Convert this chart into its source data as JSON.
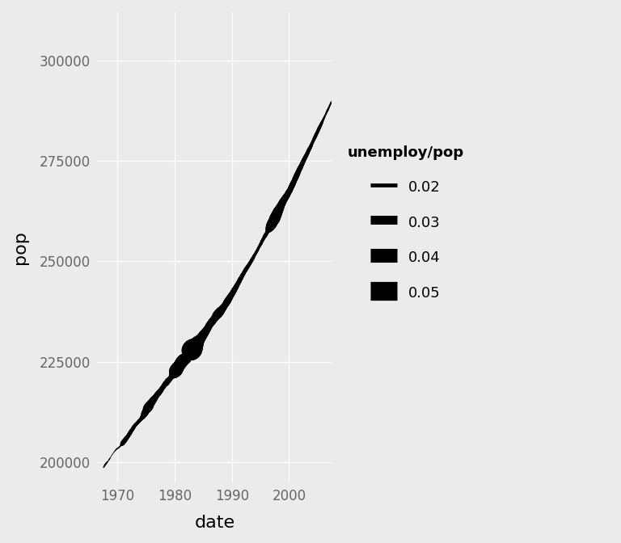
{
  "title": "",
  "xlabel": "date",
  "ylabel": "pop",
  "bg_color": "#EBEBEB",
  "panel_bg": "#EBEBEB",
  "grid_color": "#FFFFFF",
  "line_color": "#000000",
  "xlim": [
    1966.5,
    2007.5
  ],
  "ylim": [
    195000,
    312000
  ],
  "xticks": [
    1970,
    1980,
    1990,
    2000
  ],
  "yticks": [
    200000,
    225000,
    250000,
    275000,
    300000
  ],
  "legend_title": "unemploy/pop",
  "legend_values": [
    0.02,
    0.03,
    0.04,
    0.05
  ],
  "axis_label_fontsize": 16,
  "tick_label_fontsize": 12,
  "legend_fontsize": 13,
  "dates": [
    1967.583,
    1967.667,
    1967.75,
    1967.833,
    1967.917,
    1968.0,
    1968.083,
    1968.167,
    1968.25,
    1968.333,
    1968.417,
    1968.5,
    1968.583,
    1968.667,
    1968.75,
    1968.833,
    1968.917,
    1969.0,
    1969.083,
    1969.167,
    1969.25,
    1969.333,
    1969.417,
    1969.5,
    1969.583,
    1969.667,
    1969.75,
    1969.833,
    1969.917,
    1970.0,
    1970.083,
    1970.167,
    1970.25,
    1970.333,
    1970.417,
    1970.5,
    1970.583,
    1970.667,
    1970.75,
    1970.833,
    1970.917,
    1971.0,
    1971.083,
    1971.167,
    1971.25,
    1971.333,
    1971.417,
    1971.5,
    1971.583,
    1971.667,
    1971.75,
    1971.833,
    1971.917,
    1972.0,
    1972.083,
    1972.167,
    1972.25,
    1972.333,
    1972.417,
    1972.5,
    1972.583,
    1972.667,
    1972.75,
    1972.833,
    1972.917,
    1973.0,
    1973.083,
    1973.167,
    1973.25,
    1973.333,
    1973.417,
    1973.5,
    1973.583,
    1973.667,
    1973.75,
    1973.833,
    1973.917,
    1974.0,
    1974.083,
    1974.167,
    1974.25,
    1974.333,
    1974.417,
    1974.5,
    1974.583,
    1974.667,
    1974.75,
    1974.833,
    1974.917,
    1975.0,
    1975.083,
    1975.167,
    1975.25,
    1975.333,
    1975.417,
    1975.5,
    1975.583,
    1975.667,
    1975.75,
    1975.833,
    1975.917,
    1976.0,
    1976.083,
    1976.167,
    1976.25,
    1976.333,
    1976.417,
    1976.5,
    1976.583,
    1976.667,
    1976.75,
    1976.833,
    1976.917,
    1977.0,
    1977.083,
    1977.167,
    1977.25,
    1977.333,
    1977.417,
    1977.5,
    1977.583,
    1977.667,
    1977.75,
    1977.833,
    1977.917,
    1978.0,
    1978.083,
    1978.167,
    1978.25,
    1978.333,
    1978.417,
    1978.5,
    1978.583,
    1978.667,
    1978.75,
    1978.833,
    1978.917,
    1979.0,
    1979.083,
    1979.167,
    1979.25,
    1979.333,
    1979.417,
    1979.5,
    1979.583,
    1979.667,
    1979.75,
    1979.833,
    1979.917,
    1980.0,
    1980.083,
    1980.167,
    1980.25,
    1980.333,
    1980.417,
    1980.5,
    1980.583,
    1980.667,
    1980.75,
    1980.833,
    1980.917,
    1981.0,
    1981.083,
    1981.167,
    1981.25,
    1981.333,
    1981.417,
    1981.5,
    1981.583,
    1981.667,
    1981.75,
    1981.833,
    1981.917,
    1982.0,
    1982.083,
    1982.167,
    1982.25,
    1982.333,
    1982.417,
    1982.5,
    1982.583,
    1982.667,
    1982.75,
    1982.833,
    1982.917,
    1983.0,
    1983.083,
    1983.167,
    1983.25,
    1983.333,
    1983.417,
    1983.5,
    1983.583,
    1983.667,
    1983.75,
    1983.833,
    1983.917,
    1984.0,
    1984.083,
    1984.167,
    1984.25,
    1984.333,
    1984.417,
    1984.5,
    1984.583,
    1984.667,
    1984.75,
    1984.833,
    1984.917,
    1985.0,
    1985.083,
    1985.167,
    1985.25,
    1985.333,
    1985.417,
    1985.5,
    1985.583,
    1985.667,
    1985.75,
    1985.833,
    1985.917,
    1986.0,
    1986.083,
    1986.167,
    1986.25,
    1986.333,
    1986.417,
    1986.5,
    1986.583,
    1986.667,
    1986.75,
    1986.833,
    1986.917,
    1987.0,
    1987.083,
    1987.167,
    1987.25,
    1987.333,
    1987.417,
    1987.5,
    1987.583,
    1987.667,
    1987.75,
    1987.833,
    1987.917,
    1988.0,
    1988.083,
    1988.167,
    1988.25,
    1988.333,
    1988.417,
    1988.5,
    1988.583,
    1988.667,
    1988.75,
    1988.833,
    1988.917,
    1989.0,
    1989.083,
    1989.167,
    1989.25,
    1989.333,
    1989.417,
    1989.5,
    1989.583,
    1989.667,
    1989.75,
    1989.833,
    1989.917,
    1990.0,
    1990.083,
    1990.167,
    1990.25,
    1990.333,
    1990.417,
    1990.5,
    1990.583,
    1990.667,
    1990.75,
    1990.833,
    1990.917,
    1991.0,
    1991.083,
    1991.167,
    1991.25,
    1991.333,
    1991.417,
    1991.5,
    1991.583,
    1991.667,
    1991.75,
    1991.833,
    1991.917,
    1992.0,
    1992.083,
    1992.167,
    1992.25,
    1992.333,
    1992.417,
    1992.5,
    1992.583,
    1992.667,
    1992.75,
    1992.833,
    1992.917,
    1993.0,
    1993.083,
    1993.167,
    1993.25,
    1993.333,
    1993.417,
    1993.5,
    1993.583,
    1993.667,
    1993.75,
    1993.833,
    1993.917,
    1994.0,
    1994.083,
    1994.167,
    1994.25,
    1994.333,
    1994.417,
    1994.5,
    1994.583,
    1994.667,
    1994.75,
    1994.833,
    1994.917,
    1995.0,
    1995.083,
    1995.167,
    1995.25,
    1995.333,
    1995.417,
    1995.5,
    1995.583,
    1995.667,
    1995.75,
    1995.833,
    1995.917,
    1996.0,
    1996.083,
    1996.167,
    1996.25,
    1996.333,
    1996.417,
    1996.5,
    1996.583,
    1996.667,
    1996.75,
    1996.833,
    1996.917,
    1997.0,
    1997.083,
    1997.167,
    1997.25,
    1997.333,
    1997.417,
    1997.5,
    1997.583,
    1997.667,
    1997.75,
    1997.833,
    1997.917,
    1998.0,
    1998.083,
    1998.167,
    1998.25,
    1998.333,
    1998.417,
    1998.5,
    1998.583,
    1998.667,
    1998.75,
    1998.833,
    1998.917,
    1999.0,
    1999.083,
    1999.167,
    1999.25,
    1999.333,
    1999.417,
    1999.5,
    1999.583,
    1999.667,
    1999.75,
    1999.833,
    1999.917,
    2000.0,
    2000.083,
    2000.167,
    2000.25,
    2000.333,
    2000.417,
    2000.5,
    2000.583,
    2000.667,
    2000.75,
    2000.833,
    2000.917,
    2001.0,
    2001.083,
    2001.167,
    2001.25,
    2001.333,
    2001.417,
    2001.5,
    2001.583,
    2001.667,
    2001.75,
    2001.833,
    2001.917,
    2002.0,
    2002.083,
    2002.167,
    2002.25,
    2002.333,
    2002.417,
    2002.5,
    2002.583,
    2002.667,
    2002.75,
    2002.833,
    2002.917,
    2003.0,
    2003.083,
    2003.167,
    2003.25,
    2003.333,
    2003.417,
    2003.5,
    2003.583,
    2003.667,
    2003.75,
    2003.833,
    2003.917,
    2004.0,
    2004.083,
    2004.167,
    2004.25,
    2004.333,
    2004.417,
    2004.5,
    2004.583,
    2004.667,
    2004.75,
    2004.833,
    2004.917,
    2005.0,
    2005.083,
    2005.167,
    2005.25,
    2005.333,
    2005.417,
    2005.5,
    2005.583,
    2005.667,
    2005.75,
    2005.833,
    2005.917,
    2006.0,
    2006.083,
    2006.167,
    2006.25,
    2006.333,
    2006.417,
    2006.5,
    2006.583,
    2006.667,
    2006.75,
    2006.833,
    2006.917,
    2007.0,
    2007.083,
    2007.167,
    2007.25,
    2007.333,
    2007.417
  ],
  "pop": [
    198712,
    198911,
    199113,
    199311,
    199498,
    199657,
    199808,
    199920,
    200056,
    200208,
    200361,
    200536,
    200706,
    200898,
    201095,
    201290,
    201491,
    201657,
    201881,
    202023,
    202184,
    202385,
    202527,
    202677,
    202814,
    202962,
    203085,
    203213,
    203312,
    203426,
    203466,
    203513,
    203638,
    203743,
    203850,
    204007,
    204133,
    204285,
    204397,
    204551,
    204716,
    204930,
    205048,
    205181,
    205350,
    205504,
    205651,
    205818,
    205984,
    206100,
    206266,
    206434,
    206601,
    206801,
    206977,
    207162,
    207380,
    207590,
    207777,
    207927,
    208086,
    208267,
    208462,
    208658,
    208850,
    209014,
    209160,
    209305,
    209427,
    209548,
    209669,
    209804,
    209916,
    210023,
    210197,
    210320,
    210439,
    210547,
    210673,
    210803,
    210988,
    211153,
    211241,
    211402,
    211605,
    211867,
    212117,
    212320,
    212512,
    212744,
    212966,
    213198,
    213361,
    213535,
    213728,
    213889,
    214059,
    214256,
    214451,
    214615,
    214766,
    214931,
    215093,
    215289,
    215465,
    215590,
    215751,
    215890,
    216065,
    216208,
    216376,
    216561,
    216730,
    216880,
    216985,
    217101,
    217252,
    217453,
    217578,
    217727,
    217856,
    218035,
    218234,
    218419,
    218568,
    218711,
    218877,
    219073,
    219239,
    219378,
    219504,
    219591,
    219751,
    219917,
    220098,
    220241,
    220363,
    220472,
    220574,
    220702,
    220862,
    221050,
    221215,
    221370,
    221518,
    221629,
    221768,
    221900,
    222095,
    222277,
    222489,
    222704,
    222865,
    223053,
    223248,
    223394,
    223554,
    223711,
    223868,
    224100,
    224309,
    224508,
    224645,
    224820,
    224979,
    225090,
    225288,
    225423,
    225506,
    225571,
    225619,
    225705,
    225768,
    225898,
    226045,
    226218,
    226389,
    226538,
    226703,
    226876,
    227038,
    227221,
    227377,
    227541,
    227726,
    227908,
    228044,
    228216,
    228357,
    228481,
    228563,
    228680,
    228846,
    229031,
    229215,
    229441,
    229637,
    229820,
    229972,
    230069,
    230206,
    230361,
    230557,
    230698,
    230876,
    231045,
    231154,
    231327,
    231546,
    231731,
    231875,
    232005,
    232166,
    232373,
    232529,
    232691,
    232910,
    233086,
    233240,
    233440,
    233706,
    233941,
    234089,
    234258,
    234457,
    234617,
    234720,
    234875,
    235052,
    235185,
    235328,
    235519,
    235675,
    235797,
    235939,
    236126,
    236320,
    236503,
    236670,
    236755,
    236888,
    237041,
    237158,
    237275,
    237457,
    237602,
    237736,
    237866,
    238015,
    238142,
    238301,
    238466,
    238606,
    238810,
    238959,
    239105,
    239279,
    239499,
    239713,
    239880,
    240059,
    240275,
    240468,
    240651,
    240854,
    241038,
    241252,
    241440,
    241603,
    241784,
    241989,
    242162,
    242369,
    242591,
    242830,
    243041,
    243214,
    243382,
    243630,
    243831,
    244060,
    244284,
    244489,
    244701,
    244897,
    245115,
    245408,
    245602,
    245782,
    245991,
    246241,
    246463,
    246642,
    246808,
    247047,
    247293,
    247488,
    247656,
    247862,
    248090,
    248231,
    248395,
    248605,
    248762,
    248956,
    249103,
    249320,
    249511,
    249688,
    249901,
    250132,
    250330,
    250512,
    250693,
    250924,
    251175,
    251393,
    251588,
    251777,
    251978,
    252198,
    252420,
    252610,
    252815,
    253046,
    253341,
    253512,
    253702,
    253967,
    254150,
    254369,
    254648,
    254906,
    255104,
    255337,
    255530,
    255755,
    255981,
    256202,
    256388,
    256541,
    256739,
    256968,
    257190,
    257399,
    257609,
    257825,
    258019,
    258207,
    258442,
    258680,
    258859,
    259058,
    259270,
    259503,
    259711,
    259944,
    260133,
    260350,
    260598,
    260875,
    261159,
    261425,
    261627,
    261900,
    262182,
    262474,
    262700,
    262872,
    263104,
    263378,
    263642,
    263888,
    264104,
    264340,
    264591,
    264823,
    265003,
    265190,
    265371,
    265554,
    265747,
    265921,
    266114,
    266278,
    266459,
    266682,
    266936,
    267166,
    267344,
    267519,
    267707,
    267972,
    268278,
    268498,
    268750,
    269007,
    269279,
    269512,
    269736,
    270002,
    270298,
    270562,
    270798,
    271085,
    271361,
    271593,
    271860,
    272151,
    272432,
    272704,
    272910,
    273131,
    273362,
    273596,
    273861,
    274136,
    274382,
    274651,
    274918,
    275152,
    275389,
    275625,
    275847,
    276059,
    276282,
    276516,
    276752,
    276990,
    277281,
    277583,
    277799,
    278014,
    278193,
    278432,
    278711,
    278965,
    279270,
    279524,
    279773,
    280027,
    280292,
    280537,
    280783,
    281022,
    281274,
    281577,
    281788,
    282015,
    282261,
    282526,
    282820,
    283063,
    283286,
    283556,
    283778,
    284041,
    284296,
    284544,
    284799,
    285064,
    285328,
    285570,
    285832,
    286088,
    286341,
    286570,
    286838,
    287111,
    287381,
    287577,
    287854,
    288088,
    288386,
    288638,
    288899,
    289140,
    289395,
    289639,
    289883,
    290099,
    290378,
    290639,
    290860,
    291089,
    291339,
    291555,
    291783,
    292033,
    292284,
    292553,
    292849,
    293126,
    293362,
    293609,
    293927,
    294240,
    294525,
    294739,
    295018,
    295373,
    295702,
    295983,
    296222,
    296543,
    296860,
    297173,
    297496,
    297766,
    298060,
    298380,
    298659,
    298952,
    299289,
    299548,
    299817,
    300146,
    300459,
    300776,
    301017
  ],
  "unemploy": [
    2944,
    2945,
    2958,
    3143,
    3066,
    3018,
    2878,
    3001,
    2877,
    2709,
    2740,
    2938,
    2883,
    2768,
    2686,
    2689,
    2715,
    2685,
    2718,
    2692,
    2712,
    2758,
    2713,
    2816,
    2836,
    2862,
    2949,
    2999,
    3010,
    2919,
    2934,
    2893,
    2979,
    3003,
    2995,
    3021,
    3116,
    3313,
    3758,
    4181,
    4398,
    4337,
    4434,
    4404,
    4364,
    4358,
    4356,
    4255,
    4127,
    4187,
    4168,
    4142,
    4179,
    4082,
    4263,
    4197,
    4137,
    4143,
    4096,
    4101,
    4086,
    4118,
    4111,
    4071,
    4011,
    3971,
    3962,
    4015,
    3981,
    3954,
    3895,
    3894,
    4045,
    4049,
    3955,
    3982,
    4043,
    4095,
    4148,
    4127,
    4249,
    4513,
    4653,
    4617,
    5004,
    5220,
    5512,
    5544,
    5555,
    5628,
    5649,
    6224,
    6403,
    6447,
    6447,
    6361,
    6180,
    5993,
    5869,
    5802,
    5797,
    5773,
    5714,
    5637,
    5521,
    5464,
    5387,
    5267,
    5184,
    5100,
    5066,
    5031,
    4978,
    5037,
    5076,
    5085,
    5062,
    4975,
    4964,
    4937,
    4895,
    4746,
    4739,
    4739,
    4752,
    4771,
    4808,
    4885,
    4914,
    5060,
    5058,
    5200,
    5248,
    5237,
    5160,
    5098,
    5076,
    5083,
    5055,
    4973,
    4949,
    4913,
    4938,
    5136,
    5398,
    5634,
    6160,
    6571,
    7014,
    7596,
    8095,
    8558,
    8610,
    8456,
    8390,
    8285,
    8157,
    8081,
    7987,
    7987,
    8070,
    8156,
    8247,
    8344,
    8246,
    8232,
    8130,
    8095,
    8023,
    7928,
    7928,
    7748,
    7712,
    7700,
    7691,
    7724,
    7894,
    8024,
    8173,
    8455,
    9108,
    9702,
    10178,
    10907,
    11750,
    12051,
    11871,
    11378,
    11015,
    10485,
    10074,
    9918,
    9821,
    9497,
    9176,
    8903,
    8698,
    8364,
    8016,
    7872,
    7784,
    7644,
    7348,
    7169,
    7176,
    7124,
    7082,
    7019,
    6975,
    6887,
    6716,
    6706,
    6628,
    6588,
    6478,
    6367,
    6298,
    6254,
    6226,
    6167,
    6168,
    6157,
    6198,
    6127,
    6120,
    6211,
    6306,
    6359,
    6373,
    6322,
    6262,
    6237,
    6261,
    6329,
    6450,
    6609,
    6756,
    6821,
    6938,
    7115,
    7085,
    7079,
    7016,
    6932,
    6916,
    6796,
    6665,
    6537,
    6436,
    6321,
    6220,
    6161,
    6069,
    6019,
    5929,
    5933,
    6066,
    6140,
    6212,
    6212,
    6223,
    6152,
    6100,
    6009,
    5989,
    5869,
    5799,
    5727,
    5725,
    5694,
    5718,
    5621,
    5703,
    5638,
    5579,
    5519,
    5534,
    5478,
    5398,
    5361,
    5294,
    5231,
    5209,
    5211,
    5184,
    5224,
    5228,
    5186,
    5134,
    5078,
    5035,
    4968,
    4987,
    4962,
    4921,
    4901,
    4920,
    4978,
    5029,
    5010,
    4981,
    4966,
    4910,
    4834,
    4804,
    4851,
    4836,
    4797,
    4741,
    4799,
    4788,
    4838,
    4819,
    4717,
    4639,
    4575,
    4500,
    4512,
    4497,
    4435,
    4474,
    4496,
    4517,
    4449,
    4411,
    4380,
    4440,
    4478,
    4578,
    4655,
    4590,
    4695,
    4735,
    4721,
    4696,
    4765,
    4814,
    4935,
    5065,
    5104,
    5100,
    5069,
    4975,
    5044,
    5227,
    5680,
    6197,
    6722,
    7132,
    7642,
    7877,
    8177,
    8230,
    8386,
    8481,
    8279,
    8391,
    8561,
    8741,
    8901,
    8680,
    8651,
    8578,
    8509,
    8454,
    8251,
    8053,
    7900,
    7842,
    7694,
    7478,
    7320,
    7199,
    7180,
    7113,
    7055,
    6925,
    6832,
    6803,
    6757,
    6672,
    6713,
    6645,
    6579,
    6540,
    6456,
    6399,
    6419,
    6372,
    6341,
    6280,
    6266,
    6243,
    6302,
    6320,
    6366,
    6317,
    6287,
    6200,
    6143,
    6135,
    6175,
    6266,
    6296,
    6268,
    6290,
    6261,
    6135,
    6108,
    6028,
    6069,
    6090,
    6046,
    5918,
    5839,
    5832,
    5836,
    5844,
    5746,
    5759,
    5699,
    5673,
    5637,
    5621,
    5580,
    5580,
    5488,
    5500,
    5502,
    5499,
    5485,
    5505,
    5423,
    5337,
    5305,
    5244,
    5171,
    5157,
    5055,
    5097,
    5182,
    5248,
    5293,
    5349,
    5338,
    5327,
    5328,
    5292,
    5285,
    5282,
    5349,
    5338,
    5345,
    5319,
    5236,
    5108,
    5098,
    5018,
    4936,
    4768,
    4686,
    4615,
    4573,
    4499,
    4417,
    4381,
    4417,
    4459,
    4540,
    4595,
    4574,
    4476,
    4458,
    4436,
    4457,
    4380,
    4441,
    4527,
    4627,
    4756,
    4866,
    4951,
    5019,
    5072,
    5114,
    5103,
    5001,
    5081,
    5184
  ]
}
